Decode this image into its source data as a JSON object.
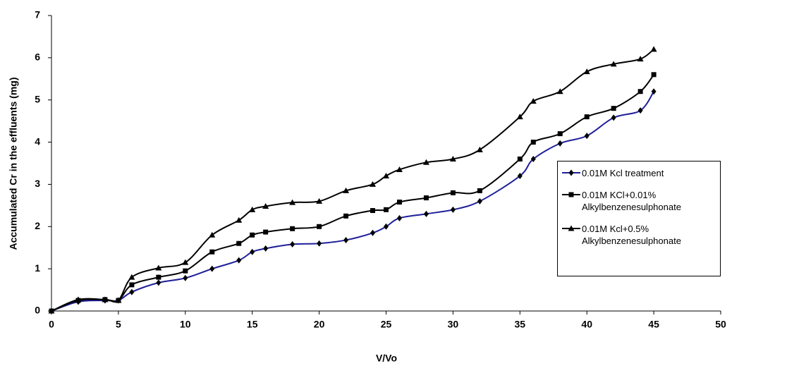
{
  "chart_data": {
    "type": "line",
    "x_label": "V/Vo",
    "y_label": "Accumulated Cr in the effluents (mg)",
    "x": [
      0,
      2,
      4,
      5,
      6,
      8,
      10,
      12,
      14,
      15,
      16,
      18,
      20,
      22,
      24,
      25,
      26,
      28,
      30,
      32,
      35,
      36,
      38,
      40,
      42,
      44,
      45
    ],
    "series": [
      {
        "name": "0.01M Kcl treatment",
        "color": "#1f1f9a",
        "marker": "diamond",
        "values": [
          0,
          0.22,
          0.25,
          0.25,
          0.45,
          0.67,
          0.78,
          1.0,
          1.2,
          1.4,
          1.48,
          1.58,
          1.6,
          1.68,
          1.85,
          2.0,
          2.2,
          2.3,
          2.4,
          2.6,
          3.2,
          3.6,
          3.97,
          4.15,
          4.58,
          4.75,
          5.2
        ]
      },
      {
        "name": "0.01M KCl+0.01% Alkylbenzenesulphonate",
        "color": "#000000",
        "marker": "square",
        "values": [
          0,
          0.25,
          0.27,
          0.25,
          0.62,
          0.8,
          0.95,
          1.4,
          1.6,
          1.8,
          1.87,
          1.95,
          2.0,
          2.25,
          2.38,
          2.4,
          2.58,
          2.68,
          2.8,
          2.85,
          3.6,
          4.0,
          4.2,
          4.6,
          4.8,
          5.2,
          5.6
        ]
      },
      {
        "name": "0.01M Kcl+0.5% Alkylbenzenesulphonate",
        "color": "#000000",
        "marker": "triangle",
        "values": [
          0,
          0.27,
          0.27,
          0.25,
          0.8,
          1.02,
          1.15,
          1.8,
          2.15,
          2.4,
          2.48,
          2.57,
          2.6,
          2.85,
          3.0,
          3.2,
          3.35,
          3.52,
          3.6,
          3.82,
          4.6,
          4.97,
          5.2,
          5.67,
          5.85,
          5.97,
          6.2
        ]
      }
    ],
    "xlim": [
      0,
      50
    ],
    "xticks": [
      0,
      5,
      10,
      15,
      20,
      25,
      30,
      35,
      40,
      45,
      50
    ],
    "ylim": [
      0,
      7
    ],
    "yticks": [
      0,
      1,
      2,
      3,
      4,
      5,
      6,
      7
    ],
    "legend": "right"
  }
}
